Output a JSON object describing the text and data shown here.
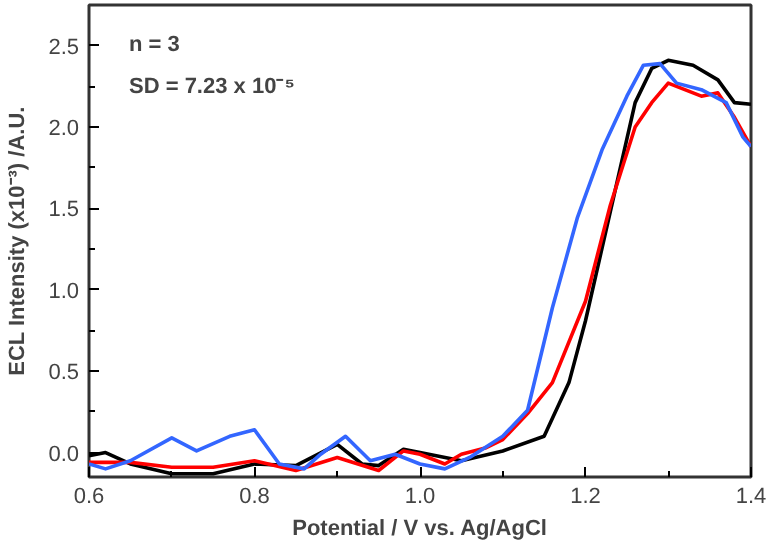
{
  "chart_data": {
    "type": "line",
    "xlabel": "Potential / V vs. Ag/AgCl",
    "ylabel": "ECL Intensity (x10⁻³) /A.U.",
    "annotations": [
      "n = 3",
      "SD = 7.23 x 10⁻⁵"
    ],
    "xlim": [
      0.6,
      1.4
    ],
    "ylim": [
      -0.15,
      2.75
    ],
    "xticks": [
      0.6,
      0.8,
      {
        "value": 1,
        "label": "1.0"
      },
      1.2,
      1.4
    ],
    "yticks": [
      {
        "value": 0,
        "label": "0.0"
      },
      0.5,
      {
        "value": 1,
        "label": "1.0"
      },
      1.5,
      {
        "value": 2,
        "label": "2.0"
      },
      2.5
    ],
    "grid": false,
    "marker": "none",
    "line_style": "solid",
    "series": [
      {
        "color": "#000000",
        "x": [
          0.6,
          0.62,
          0.65,
          0.7,
          0.75,
          0.8,
          0.85,
          0.9,
          0.93,
          0.95,
          0.98,
          1.0,
          1.05,
          1.1,
          1.15,
          1.18,
          1.2,
          1.23,
          1.26,
          1.28,
          1.3,
          1.33,
          1.36,
          1.38,
          1.4
        ],
        "values": [
          -0.02,
          0.0,
          -0.07,
          -0.13,
          -0.13,
          -0.07,
          -0.08,
          0.05,
          -0.07,
          -0.08,
          0.02,
          0.0,
          -0.05,
          0.01,
          0.1,
          0.43,
          0.81,
          1.48,
          2.15,
          2.36,
          2.41,
          2.38,
          2.29,
          2.15,
          2.14
        ]
      },
      {
        "color": "#ff0000",
        "x": [
          0.6,
          0.65,
          0.7,
          0.75,
          0.8,
          0.85,
          0.9,
          0.95,
          0.98,
          1.0,
          1.03,
          1.05,
          1.08,
          1.1,
          1.13,
          1.16,
          1.2,
          1.23,
          1.26,
          1.28,
          1.3,
          1.32,
          1.34,
          1.36,
          1.38,
          1.4
        ],
        "values": [
          -0.06,
          -0.06,
          -0.09,
          -0.09,
          -0.05,
          -0.11,
          -0.03,
          -0.11,
          0.01,
          -0.01,
          -0.07,
          -0.01,
          0.03,
          0.08,
          0.24,
          0.43,
          0.93,
          1.52,
          2.0,
          2.15,
          2.27,
          2.23,
          2.19,
          2.21,
          2.06,
          1.88
        ]
      },
      {
        "color": "#3366ff",
        "x": [
          0.6,
          0.62,
          0.65,
          0.7,
          0.73,
          0.77,
          0.8,
          0.83,
          0.86,
          0.88,
          0.91,
          0.94,
          0.97,
          1.0,
          1.03,
          1.06,
          1.1,
          1.13,
          1.16,
          1.19,
          1.22,
          1.25,
          1.27,
          1.29,
          1.31,
          1.34,
          1.37,
          1.39,
          1.4
        ],
        "values": [
          -0.07,
          -0.1,
          -0.05,
          0.09,
          0.01,
          0.1,
          0.14,
          -0.07,
          -0.1,
          -0.01,
          0.1,
          -0.05,
          -0.01,
          -0.07,
          -0.1,
          -0.03,
          0.1,
          0.26,
          0.89,
          1.44,
          1.86,
          2.19,
          2.38,
          2.39,
          2.27,
          2.23,
          2.15,
          1.94,
          1.88
        ]
      }
    ]
  }
}
